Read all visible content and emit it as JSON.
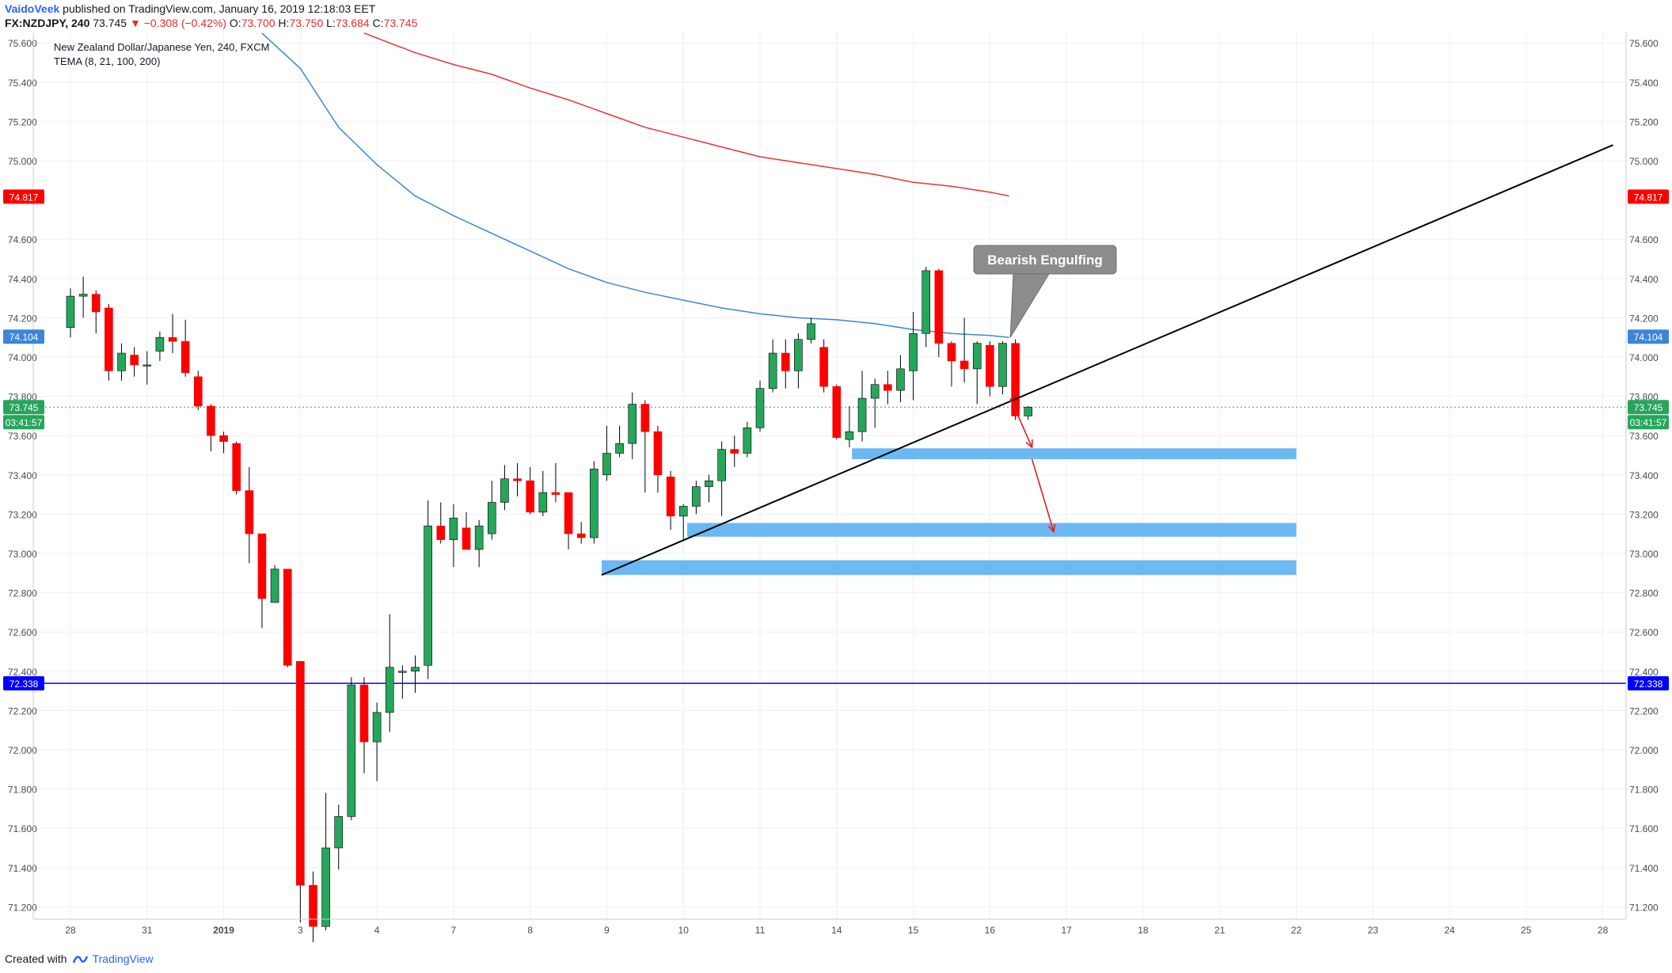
{
  "header": {
    "author": "VaidoVeek",
    "published_text": "published on TradingView.com, January 16, 2019 12:18:03 EET",
    "symbol": "FX:NZDJPY, 240",
    "last": "73.745",
    "change": "▼ −0.308 (−0.42%)",
    "ohlc": {
      "o_label": "O:",
      "o": "73.700",
      "h_label": "H:",
      "h": "73.750",
      "l_label": "L:",
      "l": "73.684",
      "c_label": "C:",
      "c": "73.745"
    }
  },
  "legend": {
    "line1": "New Zealand Dollar/Japanese Yen, 240, FXCM",
    "line2": "TEMA (8, 21, 100, 200)"
  },
  "footer": {
    "created_with": "Created with",
    "brand": "TradingView"
  },
  "colors": {
    "up": "#26a65b",
    "down": "#ff0000",
    "tema_blue": "#3c86d8",
    "tema_red": "#e83333",
    "hline": "#0000ff",
    "zone": "#6bb8f2",
    "trend": "#000000",
    "grid": "#eef0f3"
  },
  "chart_data": {
    "type": "candlestick",
    "title": "New Zealand Dollar/Japanese Yen, 240, FXCM",
    "ylim": [
      71.1,
      75.65
    ],
    "y_ticks": [
      "75.600",
      "75.400",
      "75.200",
      "75.000",
      "74.600",
      "74.400",
      "74.200",
      "74.000",
      "73.800",
      "73.600",
      "73.400",
      "73.200",
      "73.000",
      "72.800",
      "72.600",
      "72.400",
      "72.200",
      "72.000",
      "71.800",
      "71.600",
      "71.400",
      "71.200"
    ],
    "x_ticks": [
      {
        "i": 0.0,
        "label": "28"
      },
      {
        "i": 6.0,
        "label": "31"
      },
      {
        "i": 12.0,
        "label": "2019"
      },
      {
        "i": 18.0,
        "label": "3"
      },
      {
        "i": 24.0,
        "label": "4"
      },
      {
        "i": 30.0,
        "label": "7"
      },
      {
        "i": 36.0,
        "label": "8"
      },
      {
        "i": 42.0,
        "label": "9"
      },
      {
        "i": 48.0,
        "label": "10"
      },
      {
        "i": 54.0,
        "label": "11"
      },
      {
        "i": 60.0,
        "label": "14"
      },
      {
        "i": 66.0,
        "label": "15"
      },
      {
        "i": 72.0,
        "label": "16"
      },
      {
        "i": 78.0,
        "label": "17"
      },
      {
        "i": 84.0,
        "label": "18"
      },
      {
        "i": 90.0,
        "label": "21"
      },
      {
        "i": 96.0,
        "label": "22"
      },
      {
        "i": 102.0,
        "label": "23"
      },
      {
        "i": 108.0,
        "label": "24"
      },
      {
        "i": 114.0,
        "label": "25"
      },
      {
        "i": 120.0,
        "label": "28"
      }
    ],
    "candles": [
      [
        74.15,
        74.31,
        74.35,
        74.1
      ],
      [
        74.31,
        74.32,
        74.41,
        74.2
      ],
      [
        74.32,
        74.23,
        74.34,
        74.12
      ],
      [
        74.25,
        73.93,
        74.27,
        73.88
      ],
      [
        73.93,
        74.02,
        74.07,
        73.88
      ],
      [
        74.01,
        73.96,
        74.05,
        73.9
      ],
      [
        73.96,
        73.96,
        74.03,
        73.86
      ],
      [
        74.03,
        74.1,
        74.13,
        73.98
      ],
      [
        74.1,
        74.08,
        74.22,
        74.02
      ],
      [
        74.08,
        73.92,
        74.19,
        73.9
      ],
      [
        73.9,
        73.75,
        73.93,
        73.73
      ],
      [
        73.75,
        73.6,
        73.76,
        73.52
      ],
      [
        73.6,
        73.57,
        73.62,
        73.51
      ],
      [
        73.56,
        73.32,
        73.57,
        73.3
      ],
      [
        73.32,
        73.1,
        73.44,
        72.95
      ],
      [
        73.1,
        72.77,
        73.1,
        72.62
      ],
      [
        72.75,
        72.92,
        72.94,
        72.76
      ],
      [
        72.92,
        72.43,
        72.92,
        72.42
      ],
      [
        72.45,
        71.31,
        72.45,
        71.12
      ],
      [
        71.31,
        71.1,
        71.38,
        71.02
      ],
      [
        71.1,
        71.5,
        71.78,
        71.08
      ],
      [
        71.5,
        71.66,
        71.72,
        71.39
      ],
      [
        71.66,
        72.33,
        72.37,
        71.64
      ],
      [
        72.33,
        72.04,
        72.37,
        71.88
      ],
      [
        72.04,
        72.19,
        72.24,
        71.84
      ],
      [
        72.19,
        72.42,
        72.69,
        72.09
      ],
      [
        72.4,
        72.4,
        72.43,
        72.26
      ],
      [
        72.4,
        72.42,
        72.48,
        72.29
      ],
      [
        72.43,
        73.14,
        73.27,
        72.36
      ],
      [
        73.14,
        73.07,
        73.26,
        73.05
      ],
      [
        73.07,
        73.18,
        73.25,
        72.93
      ],
      [
        73.13,
        73.02,
        73.21,
        73.02
      ],
      [
        73.02,
        73.14,
        73.17,
        72.93
      ],
      [
        73.1,
        73.26,
        73.37,
        73.07
      ],
      [
        73.26,
        73.38,
        73.45,
        73.22
      ],
      [
        73.38,
        73.37,
        73.46,
        73.29
      ],
      [
        73.37,
        73.21,
        73.44,
        73.2
      ],
      [
        73.21,
        73.31,
        73.42,
        73.19
      ],
      [
        73.31,
        73.3,
        73.46,
        73.26
      ],
      [
        73.31,
        73.1,
        73.31,
        73.02
      ],
      [
        73.1,
        73.08,
        73.16,
        73.05
      ],
      [
        73.08,
        73.43,
        73.47,
        73.05
      ],
      [
        73.4,
        73.51,
        73.65,
        73.37
      ],
      [
        73.51,
        73.56,
        73.65,
        73.49
      ],
      [
        73.56,
        73.76,
        73.82,
        73.48
      ],
      [
        73.76,
        73.62,
        73.78,
        73.31
      ],
      [
        73.62,
        73.4,
        73.65,
        73.31
      ],
      [
        73.39,
        73.19,
        73.42,
        73.12
      ],
      [
        73.19,
        73.24,
        73.25,
        73.07
      ],
      [
        73.24,
        73.34,
        73.37,
        73.2
      ],
      [
        73.34,
        73.37,
        73.4,
        73.26
      ],
      [
        73.37,
        73.53,
        73.57,
        73.19
      ],
      [
        73.53,
        73.51,
        73.6,
        73.44
      ],
      [
        73.51,
        73.64,
        73.67,
        73.49
      ],
      [
        73.64,
        73.84,
        73.88,
        73.62
      ],
      [
        73.84,
        74.02,
        74.09,
        73.82
      ],
      [
        74.02,
        73.93,
        74.09,
        73.84
      ],
      [
        73.93,
        74.09,
        74.12,
        73.84
      ],
      [
        74.09,
        74.17,
        74.2,
        74.07
      ],
      [
        74.05,
        73.85,
        74.09,
        73.82
      ],
      [
        73.85,
        73.59,
        73.86,
        73.58
      ],
      [
        73.58,
        73.62,
        73.75,
        73.54
      ],
      [
        73.62,
        73.79,
        73.93,
        73.57
      ],
      [
        73.79,
        73.86,
        73.89,
        73.64
      ],
      [
        73.86,
        73.83,
        73.93,
        73.76
      ],
      [
        73.83,
        73.94,
        74.01,
        73.77
      ],
      [
        73.93,
        74.12,
        74.23,
        73.78
      ],
      [
        74.12,
        74.44,
        74.46,
        74.05
      ],
      [
        74.44,
        74.07,
        74.45,
        74.0
      ],
      [
        74.07,
        73.98,
        74.08,
        73.85
      ],
      [
        73.98,
        73.94,
        74.2,
        73.87
      ],
      [
        73.94,
        74.07,
        74.08,
        73.76
      ],
      [
        74.06,
        73.85,
        74.08,
        73.8
      ],
      [
        73.85,
        74.07,
        74.08,
        73.81
      ],
      [
        74.07,
        73.7,
        74.09,
        73.68
      ],
      [
        73.7,
        73.745,
        73.75,
        73.68
      ]
    ],
    "series": [
      {
        "name": "TEMA 100",
        "color": "#3c86d8",
        "points": [
          [
            15,
            75.65
          ],
          [
            18,
            75.47
          ],
          [
            21,
            75.17
          ],
          [
            24,
            74.98
          ],
          [
            27,
            74.82
          ],
          [
            30,
            74.72
          ],
          [
            33,
            74.63
          ],
          [
            36,
            74.54
          ],
          [
            39,
            74.45
          ],
          [
            42,
            74.38
          ],
          [
            45,
            74.33
          ],
          [
            48,
            74.29
          ],
          [
            51,
            74.25
          ],
          [
            54,
            74.22
          ],
          [
            57,
            74.2
          ],
          [
            60,
            74.19
          ],
          [
            63,
            74.17
          ],
          [
            66,
            74.14
          ],
          [
            69,
            74.12
          ],
          [
            72,
            74.11
          ],
          [
            73.5,
            74.1
          ]
        ]
      },
      {
        "name": "TEMA 200",
        "color": "#e83333",
        "points": [
          [
            23,
            75.65
          ],
          [
            27,
            75.55
          ],
          [
            30,
            75.49
          ],
          [
            33,
            75.44
          ],
          [
            36,
            75.37
          ],
          [
            39,
            75.31
          ],
          [
            42,
            75.24
          ],
          [
            45,
            75.17
          ],
          [
            48,
            75.12
          ],
          [
            51,
            75.07
          ],
          [
            54,
            75.02
          ],
          [
            57,
            74.99
          ],
          [
            60,
            74.96
          ],
          [
            63,
            74.93
          ],
          [
            66,
            74.89
          ],
          [
            69,
            74.87
          ],
          [
            72,
            74.84
          ],
          [
            73.5,
            74.82
          ]
        ]
      }
    ],
    "trendline": {
      "from": [
        41.6,
        72.89
      ],
      "to": [
        120.8,
        75.08
      ]
    },
    "hline": {
      "value": 72.338
    },
    "current_line": {
      "value": 73.745
    },
    "zones": [
      {
        "x0": 61.2,
        "x1": 96.0,
        "top": 73.535,
        "bottom": 73.48
      },
      {
        "x0": 48.3,
        "x1": 96.0,
        "top": 73.155,
        "bottom": 73.085
      },
      {
        "x0": 41.6,
        "x1": 96.0,
        "top": 72.965,
        "bottom": 72.89
      }
    ],
    "arrows": [
      {
        "from": [
          73.6,
          73.79
        ],
        "to": [
          75.3,
          73.54
        ]
      },
      {
        "from": [
          75.3,
          73.48
        ],
        "to": [
          77.0,
          73.11
        ]
      }
    ],
    "callout": {
      "text": "Bearish Engulfing",
      "value": 74.1,
      "i": 73.6
    },
    "price_labels": [
      {
        "value": 74.817,
        "text": "74.817",
        "color": "#ff0000"
      },
      {
        "value": 74.104,
        "text": "74.104",
        "color": "#3c86d8"
      },
      {
        "value": 73.745,
        "text": "73.745",
        "color": "#26a65b",
        "time": "03:41:57"
      },
      {
        "value": 72.338,
        "text": "72.338",
        "color": "#0000ff"
      }
    ]
  }
}
